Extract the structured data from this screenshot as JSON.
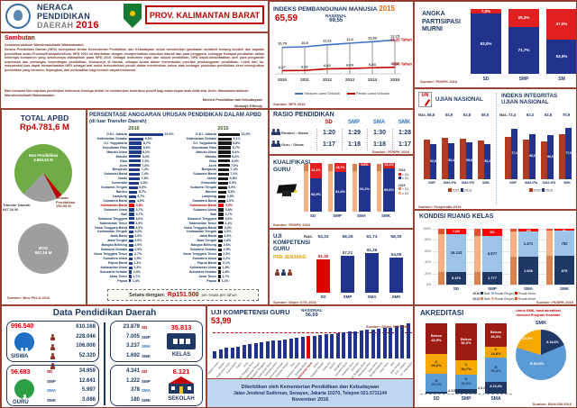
{
  "colors": {
    "navy": "#1F3864",
    "blue": "#22338E",
    "red": "#C00000",
    "bright_red": "#E02020",
    "orange": "#F7A800",
    "steel": "#5B9BD5",
    "light_blue": "#9DC3E6",
    "tan": "#F4B183",
    "dark_tan": "#D9824F",
    "green": "#6FAC46",
    "gray": "#A6A6A6",
    "maroon": "#9C1C13",
    "footer_bg": "#BDD7EE",
    "black_bar": "#1a1a1a"
  },
  "header": {
    "brand": {
      "line1": "NERACA",
      "line2": "PENDIDIKAN",
      "line3": "DAERAH",
      "year": "2016"
    },
    "province": "PROV. KALIMANTAN BARAT"
  },
  "sambutan": {
    "title": "Sambutan",
    "greeting": "Assalamu'alaikum Warrahmatullaahi Wabarakaatuh",
    "body": "Neraca Pendidikan Daerah (NPD) merupakan ikhtiar Kementerian Pendidikan dan Kebudayaan untuk memberikan gambaran mutakhir tentang kondisi dan capaian pendidikan suatu Provinsi/Kabupaten/Kota. NPD 2016 ini diterbitkan dengan memperhatikan masukan daerah dan para pengguna, sehingga terdapat perubahan dalam beberapa komponen yang sebelumnya ditampilkan pada NPD 2015. Sebagai instrumen input dan output pendidikan, NPD dapat dimanfaatkan oleh para pengambil keputusan dan pemangku kepentingan pendidikan, khususnya di daerah, sebagai acuan dalam menentukan prioritas pembangunan pendidikan. Lebih dari itu, masyarakat luas dapat memanfaatkan NPD sebagai alat untuk berkontribusi penuh dalam memberikan solusi atas berbagai persoalan pendidikan demi mewujudkan pendidikan yang bermutu, terjangkau, dan berkeadilan bagi seluruh rakyat Indonesia.",
    "closing": "Mari bersama kita majukan pendidikan Indonesia Semoga ikhtiar ini memberikan kontribusi positif bagi masa depan anak didik kita. Amin. Wassalamu'alaikum Warrahmatullaahi Wabarakaatuh",
    "signature_role": "Menteri Pendidikan dan Kebudayaan",
    "signature_name": "Muhadjir Effendy"
  },
  "ipm": {
    "title": "INDEKS PEMBANGUNAN MANUSIA",
    "year": "2015",
    "value": "65,59",
    "national_label": "NASIONAL",
    "national": "69,55",
    "years": [
      "2010",
      "2011",
      "2012",
      "2013",
      "2014",
      "2015"
    ],
    "hls": {
      "legend": "Harapan Lama Sekolah",
      "values": [
        10.79,
        10.9,
        11.31,
        11.6,
        11.89,
        12.25
      ],
      "labels": [
        "10,79",
        "10,9",
        "11,31",
        "11,6",
        "11,89",
        "12,25"
      ],
      "end": "12,25 Tahun"
    },
    "rls": {
      "legend": "Rerata Lama Sekolah",
      "values": [
        6.27,
        6.32,
        6.62,
        6.69,
        6.83,
        6.93
      ],
      "labels": [
        "6,27",
        "6,32",
        "6,62",
        "6,69",
        "6,83",
        "6,93"
      ],
      "end": "6,93 Tahun"
    },
    "source": "Sumber: BPS 2016"
  },
  "apm": {
    "title": "ANGKA PARTISIPASI MURNI",
    "categories": [
      "SD",
      "SMP",
      "SM"
    ],
    "in_pct": [
      93.0,
      71.7,
      53.0
    ],
    "out_pct": [
      7.0,
      28.3,
      47.0
    ],
    "source": "Sumber: PDSPK 2016"
  },
  "apbd": {
    "title": "TOTAL APBD",
    "total": "Rp4.781,6 M",
    "slices": [
      {
        "label": "Non Pendidikan",
        "value": "3.683,50 M",
        "pct": 77.0
      },
      {
        "label": "Urusan Pendidikan",
        "value": "150,95 M",
        "pct": 3.2
      },
      {
        "label": "Transfer Daerah",
        "value": "947,16 M",
        "pct": 19.8
      }
    ],
    "bos_label": "BOS",
    "bos_value": "947,16 M",
    "source": "Sumber: Biro PKLN 2016"
  },
  "anggaran": {
    "title1": "PERSENTASE ANGGARAN URUSAN PENDIDIKAN DALAM APBD",
    "title2": "(di luar Transfer Daerah)",
    "year_2016": "2016",
    "year_2015": "2015",
    "highlight": "Kalimantan Barat",
    "rows_2016": [
      [
        "D.K.I. Jakarta",
        22.9
      ],
      [
        "Kalimantan Selatan",
        9.8
      ],
      [
        "D.I. Yogyakarta",
        8.7
      ],
      [
        "Kepulauan Riau",
        8.6
      ],
      [
        "Maluku Utara",
        8.2
      ],
      [
        "Maluku",
        8.0
      ],
      [
        "Riau",
        7.9
      ],
      [
        "Aceh",
        7.8
      ],
      [
        "Bengkulu",
        7.4
      ],
      [
        "Sulawesi Barat",
        7.4
      ],
      [
        "Jambi",
        7.3
      ],
      [
        "Gorontalo",
        6.8
      ],
      [
        "Sulawesi Tengah",
        5.9
      ],
      [
        "Banten",
        5.7
      ],
      [
        "Lampung",
        4.7
      ],
      [
        "Sumatera Barat",
        4.5
      ],
      [
        "Kalimantan Barat",
        3.8
      ],
      [
        "Sulawesi Utara",
        3.7
      ],
      [
        "Bali",
        3.7
      ],
      [
        "Sulawesi Tenggara",
        3.6
      ],
      [
        "Kalimantan Timur",
        3.5
      ],
      [
        "Nusa Tenggara Barat",
        3.5
      ],
      [
        "Kalimantan Tengah",
        3.0
      ],
      [
        "Jawa Barat",
        2.9
      ],
      [
        "Jawa Tengah",
        2.9
      ],
      [
        "Bangka Belitung",
        2.9
      ],
      [
        "Sulawesi Selatan",
        2.9
      ],
      [
        "Nusa Tenggara Timur",
        2.7
      ],
      [
        "Sumatera Utara",
        2.5
      ],
      [
        "Papua Barat",
        2.3
      ],
      [
        "Kalimantan Utara",
        2.3
      ],
      [
        "Sumatera Selatan",
        2.0
      ],
      [
        "Jawa Timur",
        1.7
      ],
      [
        "Papua",
        1.4
      ]
    ],
    "rows_2015": [
      [
        "D.K.I. Jakarta",
        14.5
      ],
      [
        "Kalimantan Selatan",
        9.1
      ],
      [
        "D.I. Yogyakarta",
        8.8
      ],
      [
        "Kepulauan Riau",
        8.7
      ],
      [
        "Maluku Utara",
        8.4
      ],
      [
        "Maluku",
        8.2
      ],
      [
        "Riau",
        8.0
      ],
      [
        "Aceh",
        7.6
      ],
      [
        "Bengkulu",
        7.4
      ],
      [
        "Sulawesi Barat",
        7.2
      ],
      [
        "Jambi",
        6.8
      ],
      [
        "Gorontalo",
        6.5
      ],
      [
        "Sulawesi Tengah",
        5.9
      ],
      [
        "Banten",
        5.6
      ],
      [
        "Lampung",
        4.9
      ],
      [
        "Sumatera Barat",
        4.6
      ],
      [
        "Kalimantan Barat",
        3.9
      ],
      [
        "Sulawesi Utara",
        3.8
      ],
      [
        "Bali",
        3.7
      ],
      [
        "Sulawesi Tenggara",
        3.6
      ],
      [
        "Kalimantan Timur",
        3.4
      ],
      [
        "Nusa Tenggara Barat",
        3.2
      ],
      [
        "Kalimantan Tengah",
        3.0
      ],
      [
        "Jawa Barat",
        2.9
      ],
      [
        "Jawa Tengah",
        2.8
      ],
      [
        "Bangka Belitung",
        2.6
      ],
      [
        "Sulawesi Selatan",
        2.5
      ],
      [
        "Nusa Tenggara Timur",
        2.3
      ],
      [
        "Sumatera Utara",
        2.2
      ],
      [
        "Papua Barat",
        2.1
      ],
      [
        "Kalimantan Utara",
        1.9
      ],
      [
        "Sumatera Selatan",
        1.8
      ],
      [
        "Jawa Timur",
        1.7
      ],
      [
        "Papua",
        1.3
      ]
    ],
    "equiv_prefix": "Setara dengan:",
    "equiv_amount": "Rp151.500",
    "equiv_suffix": "per siswa per tahun"
  },
  "rasio": {
    "title": "RASIO PENDIDIKAN",
    "cols": [
      "SD",
      "SMP",
      "SMA",
      "SMK"
    ],
    "rows": [
      {
        "label": "Rombel : Siswa",
        "values": [
          "1:20",
          "1:29",
          "1:30",
          "1:28"
        ]
      },
      {
        "label": "Guru : Siswa",
        "values": [
          "1:17",
          "1:18",
          "1:18",
          "1:17"
        ]
      }
    ],
    "source": "Sumber: PDSPK 2016"
  },
  "kualifikasi": {
    "title": "KUALIFIKASI GURU",
    "categories": [
      "SD",
      "SMP",
      "SMA",
      "SMK"
    ],
    "ge_d4": [
      68.9,
      81.3,
      94.2,
      89.6
    ],
    "lt_d4": [
      31.1,
      18.7,
      5.8,
      10.4
    ],
    "legend": {
      "y2016": "2016",
      "y2015": "2015",
      "lt": "< D4",
      "ge": "≥ D4"
    },
    "source": "Sumber: PDSPK 2016"
  },
  "ukg_jenjang": {
    "title": "UJI KOMPETENSI GURU",
    "subtitle": "PER JENJANG",
    "nas_label": "Nas.",
    "nas": [
      54.33,
      58.25,
      61.74,
      58.3
    ],
    "values": [
      51.15,
      57.21,
      61.26,
      54.08
    ],
    "categories": [
      "SD",
      "SMP",
      "SMA",
      "SMK"
    ],
    "source": "Sumber: Ditjen GTK 2016"
  },
  "un": {
    "title": "UJIAN NASIONAL",
    "nas_label": "Nas.",
    "nas": [
      58.6,
      54.9,
      52.8,
      58.5
    ],
    "v2015": [
      60.0,
      63.0,
      62.0,
      59.0
    ],
    "v2016": [
      52.8,
      55.4,
      55.8,
      53.4
    ],
    "categories": [
      "SMP",
      "SMA IPA",
      "SMA IPS",
      "SMK"
    ],
    "legend": [
      "2015",
      "2016"
    ],
    "source": "Sumber: Puspendik 2016"
  },
  "integritas": {
    "title1": "INDEKS INTEGRITAS",
    "title2": "UJIAN NASIONAL",
    "nas_label": "Nas.",
    "nas": [
      73.4,
      62.2,
      63.8,
      70.9
    ],
    "v2015": [
      65.0,
      60.0,
      58.0,
      68.0
    ],
    "v2016": [
      77.4,
      68.8,
      66.5,
      77.5
    ],
    "categories": [
      "SMP",
      "SMA IPA",
      "SMA IPS",
      "SMK"
    ],
    "legend": [
      "2015",
      "2016"
    ]
  },
  "ruang": {
    "title": "KONDISI RUANG KELAS",
    "categories": [
      "SD",
      "SMP",
      "SMA",
      "SMK"
    ],
    "baik": [
      "5.470",
      "1.777",
      "1.636",
      "879"
    ],
    "ringan": [
      "16.243",
      "4.877",
      "1.471",
      "782"
    ],
    "berat": [
      "2.166",
      "951",
      "138",
      "51"
    ],
    "legend_labels": [
      "Baik",
      "Rusak Ringan",
      "Rusak Berat"
    ],
    "legend_2016": "2016",
    "legend_2015": "2015",
    "source": "Sumber: PDSPK 2016"
  },
  "data_daerah": {
    "title": "Data Pendidikan Daerah",
    "siswa": {
      "label": "SISWA",
      "total": "996.540",
      "rows": [
        "610.168",
        "228.046",
        "106.006",
        "52.320"
      ]
    },
    "guru": {
      "label": "GURU",
      "total": "56.683",
      "rows": [
        {
          "l": "SD",
          "v": "34.959"
        },
        {
          "l": "SMP",
          "v": "12.641"
        },
        {
          "l": "SMA",
          "v": "5.997"
        },
        {
          "l": "SMK",
          "v": "3.086"
        }
      ]
    },
    "kelas": {
      "label": "KELAS",
      "total": "35.813",
      "rows": [
        {
          "v": "23.879",
          "l": "SD"
        },
        {
          "v": "7.005",
          "l": "SMP"
        },
        {
          "v": "3.237",
          "l": "SMA"
        },
        {
          "v": "1.692",
          "l": "SMK"
        }
      ]
    },
    "sekolah": {
      "label": "SEKOLAH",
      "total": "6.121",
      "rows": [
        {
          "v": "4.341",
          "l": "SD"
        },
        {
          "v": "1.222",
          "l": "SMP"
        },
        {
          "v": "378",
          "l": "SMA"
        },
        {
          "v": "180",
          "l": "SMK"
        }
      ]
    }
  },
  "ukg_prov": {
    "title": "UJI KOMPETENSI GURU",
    "value": "53,99",
    "national_label": "NASIONAL",
    "national": "56,69",
    "national_v": 56.69,
    "highlight": "Kalimantan Barat",
    "rows": [
      [
        "Maluku Utara",
        44.8
      ],
      [
        "Maluku",
        45.7
      ],
      [
        "Kalimantan Utara",
        46.6
      ],
      [
        "Papua Barat",
        47.1
      ],
      [
        "Papua",
        47.5
      ],
      [
        "Aceh",
        48.3
      ],
      [
        "Nusa Tenggara Timur",
        48.9
      ],
      [
        "Kalimantan Tengah",
        49.5
      ],
      [
        "Sulawesi Tenggara",
        50.0
      ],
      [
        "Kalimantan Timur",
        50.6
      ],
      [
        "Sumatera Utara",
        51.1
      ],
      [
        "Kalimantan Selatan",
        51.6
      ],
      [
        "Sulawesi Tengah",
        52.1
      ],
      [
        "Riau",
        52.6
      ],
      [
        "Sumatera Selatan",
        53.0
      ],
      [
        "Sulawesi Barat",
        53.5
      ],
      [
        "Kalimantan Barat",
        53.99
      ],
      [
        "Jambi",
        54.4
      ],
      [
        "Sulawesi Selatan",
        54.8
      ],
      [
        "Lampung",
        55.2
      ],
      [
        "Banten",
        55.6
      ],
      [
        "Bengkulu",
        56.0
      ],
      [
        "Sumatera Barat",
        56.4
      ],
      [
        "Sulawesi Utara",
        56.8
      ],
      [
        "Gorontalo",
        57.2
      ],
      [
        "Nusa Tenggara Barat",
        57.6
      ],
      [
        "Kepulauan Riau",
        58.0
      ],
      [
        "Jawa Barat",
        58.4
      ],
      [
        "Bangka Belitung",
        58.8
      ],
      [
        "Jawa Timur",
        59.2
      ],
      [
        "Bali",
        59.6
      ],
      [
        "Jawa Tengah",
        60.2
      ],
      [
        "D.K.I. Jakarta",
        61.0
      ],
      [
        "D.I. Yogyakarta",
        62.3
      ]
    ],
    "source": "Sumber: Ditjen GTK 2016"
  },
  "akreditasi": {
    "title": "AKREDITASI",
    "note1": "Untuk SMK, hasil akreditasi",
    "note2": "menurut Program Keahlian",
    "categories": [
      "SD",
      "SMP",
      "SMA"
    ],
    "a": [
      2.8,
      6.2,
      16.4
    ],
    "b": [
      25.1,
      21.0,
      35.4
    ],
    "c": [
      28.6,
      20.7,
      14.9
    ],
    "belum": [
      43.5,
      52.0,
      33.3
    ],
    "labels": {
      "a": "A",
      "b": "B",
      "c": "C",
      "belum": "Belum"
    },
    "smk": {
      "label": "SMK",
      "a": 18.6,
      "b": 60.9,
      "c": 20.5
    },
    "source": "Sumber: BAN-SM 2016"
  },
  "footer": {
    "line1": "Diterbitkan oleh Kementerian Pendidikan dan Kebudayaan",
    "line2": "Jalan Jenderal Sudirman, Senayan, Jakarta 10270, Telepon 021-5711144",
    "line3": "November 2016"
  }
}
